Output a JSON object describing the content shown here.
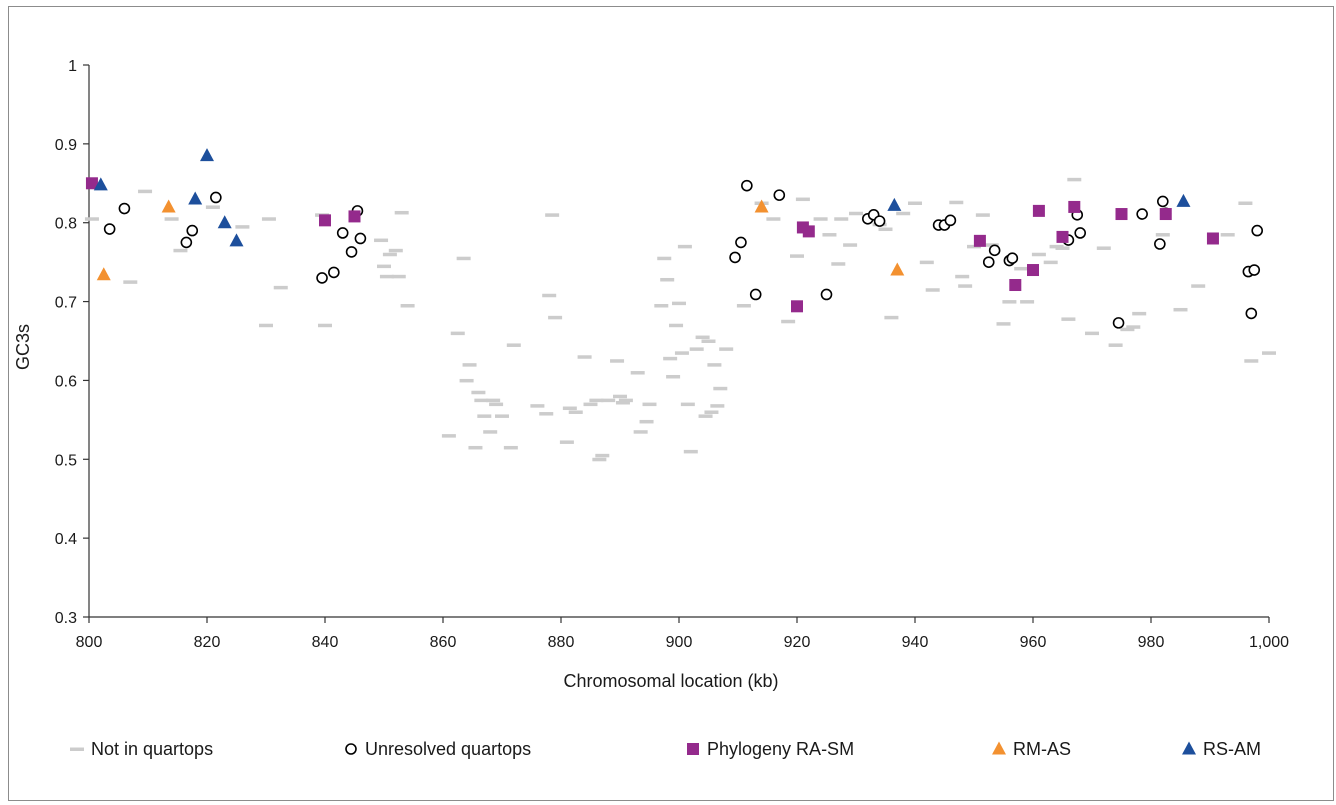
{
  "chart_data": {
    "type": "scatter",
    "xlabel": "Chromosomal location (kb)",
    "ylabel": "GC3s",
    "xlim": [
      800,
      1000
    ],
    "ylim": [
      0.3,
      1.0
    ],
    "x_ticks": [
      800,
      820,
      840,
      860,
      880,
      900,
      920,
      940,
      960,
      980,
      1000
    ],
    "x_tick_labels": [
      "800",
      "820",
      "840",
      "860",
      "880",
      "900",
      "920",
      "940",
      "960",
      "980",
      "1,000"
    ],
    "y_ticks": [
      0.3,
      0.4,
      0.5,
      0.6,
      0.7,
      0.8,
      0.9,
      1.0
    ],
    "y_tick_labels": [
      "0.3",
      "0.4",
      "0.5",
      "0.6",
      "0.7",
      "0.8",
      "0.9",
      "1"
    ],
    "grid": false,
    "legend_position": "bottom",
    "series": [
      {
        "name": "Not in quartops",
        "marker": "dash",
        "color": "#cccccc",
        "points": [
          [
            800.5,
            0.805
          ],
          [
            807,
            0.725
          ],
          [
            809.5,
            0.84
          ],
          [
            814,
            0.805
          ],
          [
            815.5,
            0.765
          ],
          [
            821,
            0.82
          ],
          [
            826,
            0.795
          ],
          [
            830.5,
            0.805
          ],
          [
            832.5,
            0.718
          ],
          [
            830,
            0.67
          ],
          [
            840,
            0.67
          ],
          [
            839.5,
            0.81
          ],
          [
            849.5,
            0.778
          ],
          [
            850,
            0.745
          ],
          [
            850.5,
            0.732
          ],
          [
            851,
            0.76
          ],
          [
            852,
            0.765
          ],
          [
            852.5,
            0.732
          ],
          [
            853,
            0.813
          ],
          [
            854,
            0.695
          ],
          [
            861,
            0.53
          ],
          [
            862.5,
            0.66
          ],
          [
            863.5,
            0.755
          ],
          [
            864,
            0.6
          ],
          [
            864.5,
            0.62
          ],
          [
            865.5,
            0.515
          ],
          [
            866,
            0.585
          ],
          [
            866.5,
            0.575
          ],
          [
            867,
            0.555
          ],
          [
            868,
            0.535
          ],
          [
            868.5,
            0.575
          ],
          [
            869,
            0.57
          ],
          [
            870,
            0.555
          ],
          [
            871.5,
            0.515
          ],
          [
            872,
            0.645
          ],
          [
            876,
            0.568
          ],
          [
            877.5,
            0.558
          ],
          [
            878,
            0.708
          ],
          [
            878.5,
            0.81
          ],
          [
            879,
            0.68
          ],
          [
            881,
            0.522
          ],
          [
            881.5,
            0.565
          ],
          [
            882.5,
            0.56
          ],
          [
            884,
            0.63
          ],
          [
            885,
            0.57
          ],
          [
            886,
            0.575
          ],
          [
            886.5,
            0.5
          ],
          [
            887,
            0.505
          ],
          [
            888,
            0.575
          ],
          [
            889.5,
            0.625
          ],
          [
            890,
            0.58
          ],
          [
            890.5,
            0.572
          ],
          [
            891,
            0.575
          ],
          [
            893,
            0.61
          ],
          [
            893.5,
            0.535
          ],
          [
            894.5,
            0.548
          ],
          [
            895,
            0.57
          ],
          [
            897,
            0.695
          ],
          [
            897.5,
            0.755
          ],
          [
            898,
            0.728
          ],
          [
            898.5,
            0.628
          ],
          [
            899,
            0.605
          ],
          [
            899.5,
            0.67
          ],
          [
            900,
            0.698
          ],
          [
            900.5,
            0.635
          ],
          [
            901,
            0.77
          ],
          [
            901.5,
            0.57
          ],
          [
            902,
            0.51
          ],
          [
            903,
            0.64
          ],
          [
            904,
            0.655
          ],
          [
            904.5,
            0.555
          ],
          [
            905,
            0.65
          ],
          [
            905.5,
            0.56
          ],
          [
            906,
            0.62
          ],
          [
            906.5,
            0.568
          ],
          [
            907,
            0.59
          ],
          [
            908,
            0.64
          ],
          [
            911,
            0.695
          ],
          [
            914,
            0.825
          ],
          [
            916,
            0.805
          ],
          [
            918.5,
            0.675
          ],
          [
            920,
            0.758
          ],
          [
            921,
            0.83
          ],
          [
            924,
            0.805
          ],
          [
            925.5,
            0.785
          ],
          [
            927,
            0.748
          ],
          [
            927.5,
            0.805
          ],
          [
            929,
            0.772
          ],
          [
            930,
            0.812
          ],
          [
            934,
            0.798
          ],
          [
            935,
            0.792
          ],
          [
            936,
            0.68
          ],
          [
            938,
            0.812
          ],
          [
            940,
            0.825
          ],
          [
            942,
            0.75
          ],
          [
            943,
            0.715
          ],
          [
            947,
            0.826
          ],
          [
            948,
            0.732
          ],
          [
            948.5,
            0.72
          ],
          [
            950,
            0.77
          ],
          [
            951.5,
            0.81
          ],
          [
            953,
            0.772
          ],
          [
            955,
            0.672
          ],
          [
            956,
            0.7
          ],
          [
            958,
            0.742
          ],
          [
            959,
            0.7
          ],
          [
            961,
            0.76
          ],
          [
            963,
            0.75
          ],
          [
            964,
            0.77
          ],
          [
            965,
            0.768
          ],
          [
            966,
            0.678
          ],
          [
            967,
            0.855
          ],
          [
            970,
            0.66
          ],
          [
            972,
            0.768
          ],
          [
            974,
            0.645
          ],
          [
            976,
            0.665
          ],
          [
            977,
            0.668
          ],
          [
            978,
            0.685
          ],
          [
            982,
            0.785
          ],
          [
            985,
            0.69
          ],
          [
            988,
            0.72
          ],
          [
            993,
            0.785
          ],
          [
            996,
            0.825
          ],
          [
            997,
            0.625
          ],
          [
            1000,
            0.635
          ]
        ]
      },
      {
        "name": "Unresolved quartops",
        "marker": "open-circle",
        "color": "#000000",
        "points": [
          [
            803.5,
            0.792
          ],
          [
            806,
            0.818
          ],
          [
            816.5,
            0.775
          ],
          [
            817.5,
            0.79
          ],
          [
            821.5,
            0.832
          ],
          [
            839.5,
            0.73
          ],
          [
            841.5,
            0.737
          ],
          [
            843,
            0.787
          ],
          [
            844.5,
            0.763
          ],
          [
            845.5,
            0.815
          ],
          [
            846,
            0.78
          ],
          [
            909.5,
            0.756
          ],
          [
            910.5,
            0.775
          ],
          [
            911.5,
            0.847
          ],
          [
            913,
            0.709
          ],
          [
            917,
            0.835
          ],
          [
            925,
            0.709
          ],
          [
            932,
            0.805
          ],
          [
            933,
            0.81
          ],
          [
            934,
            0.802
          ],
          [
            944,
            0.797
          ],
          [
            945,
            0.797
          ],
          [
            946,
            0.803
          ],
          [
            952.5,
            0.75
          ],
          [
            953.5,
            0.765
          ],
          [
            956,
            0.752
          ],
          [
            956.5,
            0.755
          ],
          [
            966,
            0.778
          ],
          [
            967.5,
            0.81
          ],
          [
            968,
            0.787
          ],
          [
            974.5,
            0.673
          ],
          [
            978.5,
            0.811
          ],
          [
            981.5,
            0.773
          ],
          [
            982,
            0.827
          ],
          [
            982.5,
            0.812
          ],
          [
            996.5,
            0.738
          ],
          [
            997,
            0.685
          ],
          [
            997.5,
            0.74
          ],
          [
            998,
            0.79
          ]
        ]
      },
      {
        "name": "Phylogeny RA-SM",
        "marker": "square",
        "color": "#942a8c",
        "points": [
          [
            800.5,
            0.85
          ],
          [
            840,
            0.803
          ],
          [
            845,
            0.808
          ],
          [
            920,
            0.694
          ],
          [
            921,
            0.794
          ],
          [
            922,
            0.789
          ],
          [
            951,
            0.777
          ],
          [
            957,
            0.721
          ],
          [
            960,
            0.74
          ],
          [
            961,
            0.815
          ],
          [
            965,
            0.782
          ],
          [
            967,
            0.82
          ],
          [
            975,
            0.811
          ],
          [
            982.5,
            0.811
          ],
          [
            990.5,
            0.78
          ]
        ]
      },
      {
        "name": "RM-AS",
        "marker": "triangle",
        "color": "#f39130",
        "points": [
          [
            802.5,
            0.734
          ],
          [
            813.5,
            0.82
          ],
          [
            914,
            0.82
          ],
          [
            937,
            0.74
          ]
        ]
      },
      {
        "name": "RS-AM",
        "marker": "triangle",
        "color": "#1d4f9c",
        "points": [
          [
            802,
            0.848
          ],
          [
            818,
            0.83
          ],
          [
            820,
            0.885
          ],
          [
            823,
            0.8
          ],
          [
            825,
            0.777
          ],
          [
            936.5,
            0.822
          ],
          [
            985.5,
            0.827
          ]
        ]
      }
    ]
  }
}
